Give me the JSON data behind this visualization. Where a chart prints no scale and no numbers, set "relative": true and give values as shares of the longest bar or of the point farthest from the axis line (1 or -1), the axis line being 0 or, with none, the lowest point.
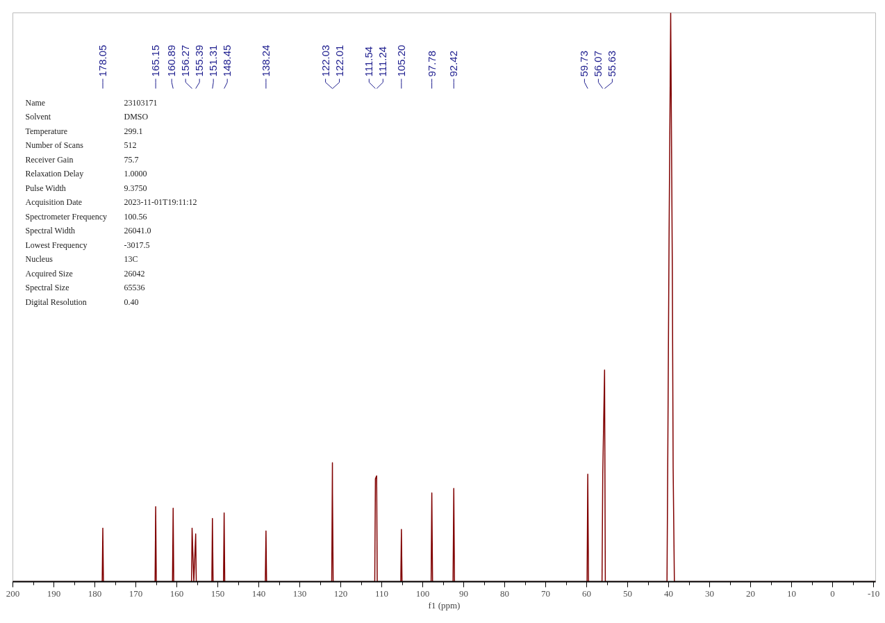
{
  "chart_data": {
    "type": "line",
    "xlabel": "f1 (ppm)",
    "relative": true,
    "tick_labels": "x",
    "grid": false,
    "xlim": [
      200,
      -10.5
    ],
    "xticks": [
      200,
      190,
      180,
      170,
      160,
      150,
      140,
      130,
      120,
      110,
      100,
      90,
      80,
      70,
      60,
      50,
      40,
      30,
      20,
      10,
      0,
      -10
    ],
    "series": [
      {
        "color": "#800000",
        "x": [
          200,
          178.2,
          178.05,
          177.9,
          165.3,
          165.15,
          165.0,
          161.05,
          160.89,
          160.75,
          156.4,
          156.27,
          155.85,
          155.39,
          155.25,
          151.45,
          151.31,
          151.15,
          148.6,
          148.45,
          148.3,
          138.4,
          138.24,
          138.1,
          122.2,
          122.03,
          122.01,
          121.85,
          111.7,
          111.54,
          111.24,
          111.1,
          105.35,
          105.2,
          105.05,
          97.95,
          97.78,
          97.6,
          92.6,
          92.42,
          92.25,
          59.9,
          59.73,
          59.55,
          56.25,
          56.07,
          55.63,
          55.45,
          40.4,
          40.2,
          39.9,
          39.5,
          39.1,
          38.9,
          38.6,
          -10.5
        ],
        "values": [
          0,
          0,
          0.094,
          0,
          0,
          0.132,
          0,
          0,
          0.129,
          0,
          0,
          0.094,
          0,
          0.084,
          0,
          0,
          0.111,
          0,
          0,
          0.121,
          0,
          0,
          0.089,
          0,
          0,
          0.209,
          0.155,
          0,
          0,
          0.181,
          0.186,
          0,
          0,
          0.092,
          0,
          0,
          0.156,
          0,
          0,
          0.164,
          0,
          0,
          0.189,
          0,
          0,
          0.189,
          0.372,
          0,
          0,
          0.23,
          0.6,
          1,
          0.55,
          0.2,
          0,
          0
        ]
      }
    ],
    "annotations": [
      {
        "text": "178.05",
        "x": 178.05
      },
      {
        "text": "165.15",
        "x": 165.15
      },
      {
        "text": "160.89",
        "x": 160.89
      },
      {
        "text": "156.27",
        "x": 156.27
      },
      {
        "text": "155.39",
        "x": 155.39
      },
      {
        "text": "151.31",
        "x": 151.31
      },
      {
        "text": "148.45",
        "x": 148.45
      },
      {
        "text": "138.24",
        "x": 138.24
      },
      {
        "text": "122.03",
        "x": 122.03
      },
      {
        "text": "122.01",
        "x": 122.01
      },
      {
        "text": "111.54",
        "x": 111.54
      },
      {
        "text": "111.24",
        "x": 111.24
      },
      {
        "text": "105.20",
        "x": 105.2
      },
      {
        "text": "97.78",
        "x": 97.78
      },
      {
        "text": "92.42",
        "x": 92.42
      },
      {
        "text": "59.73",
        "x": 59.73
      },
      {
        "text": "56.07",
        "x": 56.07
      },
      {
        "text": "55.63",
        "x": 55.63
      },
      "Name",
      "23103171",
      "Solvent",
      "DMSO",
      "Temperature",
      "299.1",
      "Number of Scans",
      "512",
      "Receiver Gain",
      "75.7",
      "Relaxation Delay",
      "1.0000",
      "Pulse Width",
      "9.3750",
      "Acquisition Date",
      "2023-11-01T19:11:12",
      "Spectrometer Frequency",
      "100.56",
      "Spectral Width",
      "26041.0",
      "Lowest Frequency",
      "-3017.5",
      "Nucleus",
      "13C",
      "Acquired Size",
      "26042",
      "Spectral Size",
      "65536",
      "Digital Resolution",
      "0.40"
    ]
  }
}
